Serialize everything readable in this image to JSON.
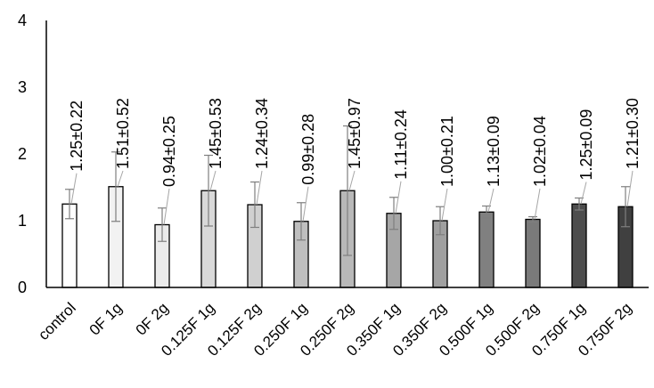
{
  "chart_data": {
    "type": "bar",
    "title": "",
    "xlabel": "",
    "ylabel": "",
    "ylim": [
      0,
      4
    ],
    "yticks": [
      0,
      1,
      2,
      3,
      4
    ],
    "grid": false,
    "legend": "none",
    "categories": [
      "control",
      "0F 1g",
      "0F 2g",
      "0.125F 1g",
      "0.125F 2g",
      "0.250F 1g",
      "0.250F 2g",
      "0.350F 1g",
      "0.350F 2g",
      "0.500F 1g",
      "0.500F 2g",
      "0.750F 1g",
      "0.750F 2g"
    ],
    "values": [
      1.25,
      1.51,
      0.94,
      1.45,
      1.24,
      0.99,
      1.45,
      1.11,
      1.0,
      1.13,
      1.02,
      1.25,
      1.21
    ],
    "errors": [
      0.22,
      0.52,
      0.25,
      0.53,
      0.34,
      0.28,
      0.97,
      0.24,
      0.21,
      0.09,
      0.04,
      0.09,
      0.3
    ],
    "data_labels": [
      "1.25±0.22",
      "1.51±0.52",
      "0.94±0.25",
      "1.45±0.53",
      "1.24±0.34",
      "0.99±0.28",
      "1.45±0.97",
      "1.11±0.24",
      "1.00±0.21",
      "1.13±0.09",
      "1.02±0.04",
      "1.25±0.09",
      "1.21±0.30"
    ],
    "bar_colors": [
      "#ffffff",
      "#f2f2f2",
      "#ebebeb",
      "#d9d9d9",
      "#d0d0d0",
      "#bfbfbf",
      "#b8b8b8",
      "#a6a6a6",
      "#a0a0a0",
      "#808080",
      "#7a7a7a",
      "#4d4d4d",
      "#404040"
    ],
    "bar_edge_color": "#000000",
    "error_bar_color": "#7f7f7f",
    "leader_line_color": "#a6a6a6"
  }
}
